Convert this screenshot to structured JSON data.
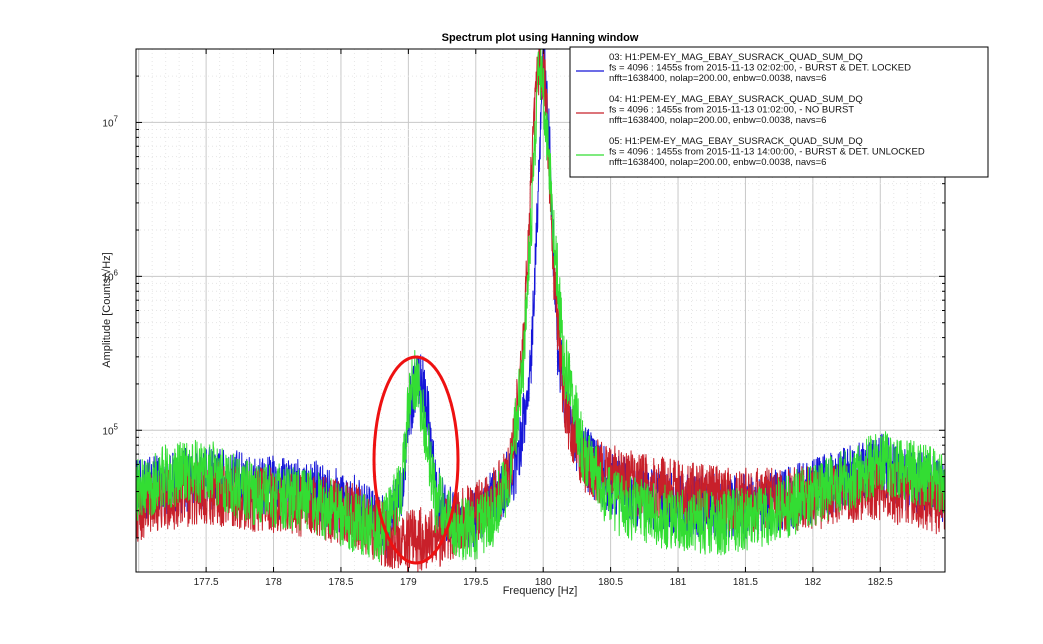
{
  "chart_data": {
    "type": "line",
    "title": "Spectrum plot using Hanning window",
    "xlabel": "Frequency [Hz]",
    "ylabel": "Amplitude [Counts/√Hz]",
    "xlim": [
      176.98,
      182.98
    ],
    "ylim": [
      12000,
      30000000
    ],
    "yscale": "log",
    "grid": true,
    "legend_position": "top-right",
    "x_ticks": [
      {
        "value": 177.5,
        "label": "177.5"
      },
      {
        "value": 178,
        "label": "178"
      },
      {
        "value": 178.5,
        "label": "178.5"
      },
      {
        "value": 179,
        "label": "179"
      },
      {
        "value": 179.5,
        "label": "179.5"
      },
      {
        "value": 180,
        "label": "180"
      },
      {
        "value": 180.5,
        "label": "180.5"
      },
      {
        "value": 181,
        "label": "181"
      },
      {
        "value": 181.5,
        "label": "181.5"
      },
      {
        "value": 182,
        "label": "182"
      },
      {
        "value": 182.5,
        "label": "182.5"
      }
    ],
    "y_ticks": [
      {
        "value": 100000,
        "base": "10",
        "exp": "5"
      },
      {
        "value": 1000000,
        "base": "10",
        "exp": "6"
      },
      {
        "value": 10000000,
        "base": "10",
        "exp": "7"
      }
    ],
    "series": [
      {
        "name": "03",
        "color": "#1515d8",
        "legend_lines": [
          "03: H1:PEM-EY_MAG_EBAY_SUSRACK_QUAD_SUM_DQ",
          "fs = 4096 : 1455s from 2015-11-13 02:02:00,             - BURST & DET. LOCKED",
          "nfft=1638400, nolap=200.00, enbw=0.0038, navs=6"
        ],
        "x": [
          176.98,
          177.2,
          177.5,
          177.8,
          178.0,
          178.3,
          178.6,
          178.85,
          178.95,
          179.0,
          179.05,
          179.1,
          179.15,
          179.2,
          179.35,
          179.5,
          179.7,
          179.8,
          179.9,
          179.95,
          180.0,
          180.05,
          180.1,
          180.2,
          180.35,
          180.5,
          180.7,
          181.0,
          181.3,
          181.6,
          182.0,
          182.3,
          182.5,
          182.7,
          182.98
        ],
        "y": [
          40000,
          45000,
          50000,
          44000,
          42000,
          40000,
          32000,
          22000,
          40000,
          120000,
          210000,
          200000,
          130000,
          40000,
          25000,
          26000,
          40000,
          60000,
          200000,
          2000000,
          28000000,
          6000000,
          400000,
          100000,
          60000,
          45000,
          38000,
          33000,
          32000,
          32000,
          40000,
          52000,
          60000,
          48000,
          40000
        ]
      },
      {
        "name": "04",
        "color": "#c8202a",
        "legend_lines": [
          "04: H1:PEM-EY_MAG_EBAY_SUSRACK_QUAD_SUM_DQ",
          "fs = 4096 : 1455s from 2015-11-13 01:02:00,                                 - NO BURST",
          "nfft=1638400, nolap=200.00, enbw=0.0038, navs=6"
        ],
        "x": [
          176.98,
          177.2,
          177.5,
          177.8,
          178.0,
          178.3,
          178.6,
          178.85,
          179.0,
          179.2,
          179.4,
          179.6,
          179.75,
          179.85,
          179.92,
          179.97,
          180.02,
          180.08,
          180.15,
          180.3,
          180.5,
          180.7,
          181.0,
          181.3,
          181.6,
          182.0,
          182.3,
          182.5,
          182.7,
          182.98
        ],
        "y": [
          30000,
          36000,
          40000,
          36000,
          35000,
          32000,
          28000,
          20000,
          19000,
          20000,
          26000,
          32000,
          50000,
          300000,
          6000000,
          26000000,
          15000000,
          1000000,
          150000,
          62000,
          50000,
          44000,
          40000,
          36000,
          35000,
          36000,
          40000,
          42000,
          38000,
          33000
        ]
      },
      {
        "name": "05",
        "color": "#33dd33",
        "legend_lines": [
          "05: H1:PEM-EY_MAG_EBAY_SUSRACK_QUAD_SUM_DQ",
          "fs = 4096 : 1455s from 2015-11-13 14:00:00,             - BURST & DET. UNLOCKED",
          "nfft=1638400, nolap=200.00, enbw=0.0038, navs=6"
        ],
        "x": [
          176.98,
          177.2,
          177.5,
          177.8,
          178.0,
          178.3,
          178.6,
          178.8,
          178.95,
          179.0,
          179.05,
          179.1,
          179.2,
          179.4,
          179.6,
          179.75,
          179.85,
          179.92,
          179.97,
          180.02,
          180.08,
          180.15,
          180.3,
          180.5,
          180.7,
          181.0,
          181.3,
          181.6,
          182.0,
          182.3,
          182.5,
          182.7,
          182.98
        ],
        "y": [
          40000,
          50000,
          55000,
          40000,
          38000,
          34000,
          26000,
          22000,
          40000,
          160000,
          220000,
          140000,
          35000,
          22000,
          25000,
          50000,
          250000,
          3000000,
          26000000,
          10000000,
          2000000,
          300000,
          70000,
          35000,
          30000,
          26000,
          25000,
          27000,
          38000,
          50000,
          62000,
          55000,
          45000
        ]
      }
    ]
  }
}
